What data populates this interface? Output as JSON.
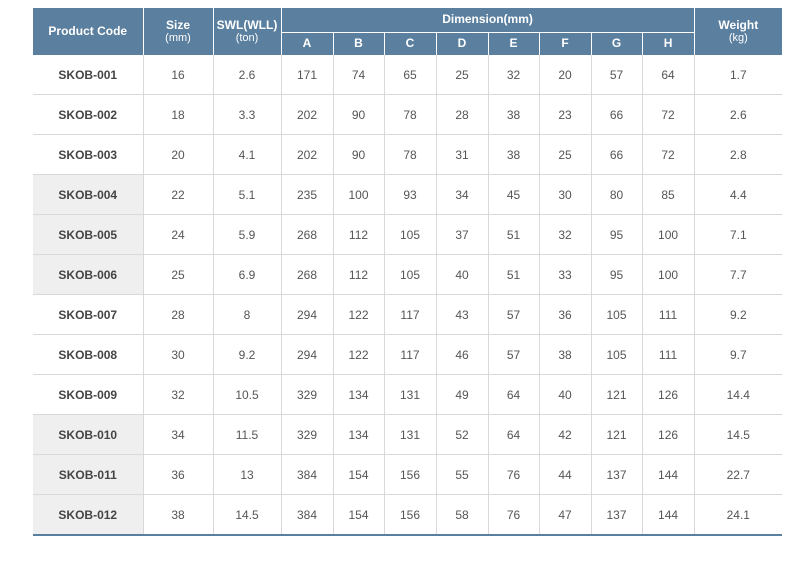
{
  "header": {
    "product_code": "Product Code",
    "size": "Size",
    "size_unit": "(mm)",
    "swl": "SWL(WLL)",
    "swl_unit": "(ton)",
    "dimension": "Dimension(mm)",
    "dims": [
      "A",
      "B",
      "C",
      "D",
      "E",
      "F",
      "G",
      "H"
    ],
    "weight": "Weight",
    "weight_unit": "(kg)"
  },
  "rows": [
    {
      "code": "SKOB-001",
      "size": "16",
      "swl": "2.6",
      "d": [
        "171",
        "74",
        "65",
        "25",
        "32",
        "20",
        "57",
        "64"
      ],
      "weight": "1.7",
      "shaded": false
    },
    {
      "code": "SKOB-002",
      "size": "18",
      "swl": "3.3",
      "d": [
        "202",
        "90",
        "78",
        "28",
        "38",
        "23",
        "66",
        "72"
      ],
      "weight": "2.6",
      "shaded": false
    },
    {
      "code": "SKOB-003",
      "size": "20",
      "swl": "4.1",
      "d": [
        "202",
        "90",
        "78",
        "31",
        "38",
        "25",
        "66",
        "72"
      ],
      "weight": "2.8",
      "shaded": false
    },
    {
      "code": "SKOB-004",
      "size": "22",
      "swl": "5.1",
      "d": [
        "235",
        "100",
        "93",
        "34",
        "45",
        "30",
        "80",
        "85"
      ],
      "weight": "4.4",
      "shaded": true
    },
    {
      "code": "SKOB-005",
      "size": "24",
      "swl": "5.9",
      "d": [
        "268",
        "112",
        "105",
        "37",
        "51",
        "32",
        "95",
        "100"
      ],
      "weight": "7.1",
      "shaded": true
    },
    {
      "code": "SKOB-006",
      "size": "25",
      "swl": "6.9",
      "d": [
        "268",
        "112",
        "105",
        "40",
        "51",
        "33",
        "95",
        "100"
      ],
      "weight": "7.7",
      "shaded": true
    },
    {
      "code": "SKOB-007",
      "size": "28",
      "swl": "8",
      "d": [
        "294",
        "122",
        "117",
        "43",
        "57",
        "36",
        "105",
        "111"
      ],
      "weight": "9.2",
      "shaded": false
    },
    {
      "code": "SKOB-008",
      "size": "30",
      "swl": "9.2",
      "d": [
        "294",
        "122",
        "117",
        "46",
        "57",
        "38",
        "105",
        "111"
      ],
      "weight": "9.7",
      "shaded": false
    },
    {
      "code": "SKOB-009",
      "size": "32",
      "swl": "10.5",
      "d": [
        "329",
        "134",
        "131",
        "49",
        "64",
        "40",
        "121",
        "126"
      ],
      "weight": "14.4",
      "shaded": false
    },
    {
      "code": "SKOB-010",
      "size": "34",
      "swl": "11.5",
      "d": [
        "329",
        "134",
        "131",
        "52",
        "64",
        "42",
        "121",
        "126"
      ],
      "weight": "14.5",
      "shaded": true
    },
    {
      "code": "SKOB-011",
      "size": "36",
      "swl": "13",
      "d": [
        "384",
        "154",
        "156",
        "55",
        "76",
        "44",
        "137",
        "144"
      ],
      "weight": "22.7",
      "shaded": true
    },
    {
      "code": "SKOB-012",
      "size": "38",
      "swl": "14.5",
      "d": [
        "384",
        "154",
        "156",
        "58",
        "76",
        "47",
        "137",
        "144"
      ],
      "weight": "24.1",
      "shaded": true
    }
  ],
  "colors": {
    "header_bg": "#5b7f9f",
    "shaded_bg": "#efefef"
  }
}
